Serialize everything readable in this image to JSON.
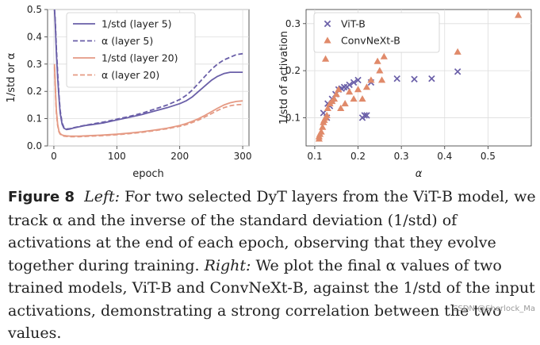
{
  "chart_data": [
    {
      "type": "line",
      "xlabel": "epoch",
      "ylabel": "1/std or α",
      "xlim": [
        -10,
        310
      ],
      "ylim": [
        0,
        0.5
      ],
      "xticks": [
        0,
        100,
        200,
        300
      ],
      "yticks": [
        0.0,
        0.1,
        0.2,
        0.3,
        0.4,
        0.5
      ],
      "xtick_labels": [
        "0",
        "100",
        "200",
        "300"
      ],
      "ytick_labels": [
        "0.0",
        "0.1",
        "0.2",
        "0.3",
        "0.4",
        "0.5"
      ],
      "grid": true,
      "legend_position": "top-right",
      "series": [
        {
          "name": "1/std (layer 5)",
          "color": "#6a5fa8",
          "dash": "solid",
          "x": [
            1,
            2,
            3,
            4,
            6,
            8,
            10,
            13,
            16,
            20,
            25,
            30,
            40,
            50,
            60,
            80,
            100,
            120,
            140,
            160,
            180,
            200,
            210,
            220,
            230,
            240,
            250,
            260,
            270,
            280,
            290,
            300
          ],
          "y": [
            0.5,
            0.46,
            0.4,
            0.34,
            0.25,
            0.18,
            0.12,
            0.08,
            0.065,
            0.06,
            0.062,
            0.065,
            0.07,
            0.075,
            0.078,
            0.085,
            0.095,
            0.105,
            0.115,
            0.128,
            0.14,
            0.155,
            0.165,
            0.18,
            0.2,
            0.22,
            0.24,
            0.255,
            0.265,
            0.27,
            0.27,
            0.27
          ]
        },
        {
          "name": "α (layer 5)",
          "color": "#6a5fa8",
          "dash": "dashed",
          "x": [
            1,
            2,
            3,
            4,
            6,
            8,
            10,
            13,
            16,
            20,
            25,
            30,
            40,
            50,
            60,
            80,
            100,
            120,
            140,
            160,
            180,
            200,
            210,
            220,
            230,
            240,
            250,
            260,
            270,
            280,
            290,
            300
          ],
          "y": [
            0.5,
            0.47,
            0.42,
            0.36,
            0.27,
            0.19,
            0.13,
            0.085,
            0.068,
            0.062,
            0.063,
            0.066,
            0.071,
            0.076,
            0.08,
            0.088,
            0.098,
            0.108,
            0.12,
            0.135,
            0.15,
            0.17,
            0.185,
            0.205,
            0.23,
            0.255,
            0.28,
            0.3,
            0.315,
            0.325,
            0.335,
            0.338
          ]
        },
        {
          "name": "1/std (layer 20)",
          "color": "#e59a84",
          "dash": "solid",
          "x": [
            1,
            2,
            3,
            4,
            6,
            8,
            10,
            13,
            16,
            20,
            25,
            30,
            40,
            50,
            60,
            80,
            100,
            120,
            140,
            160,
            180,
            200,
            210,
            220,
            230,
            240,
            250,
            260,
            270,
            280,
            290,
            300
          ],
          "y": [
            0.3,
            0.24,
            0.18,
            0.13,
            0.08,
            0.055,
            0.045,
            0.04,
            0.038,
            0.037,
            0.036,
            0.036,
            0.036,
            0.037,
            0.038,
            0.04,
            0.043,
            0.047,
            0.052,
            0.058,
            0.065,
            0.075,
            0.082,
            0.09,
            0.1,
            0.112,
            0.125,
            0.138,
            0.15,
            0.158,
            0.163,
            0.165
          ]
        },
        {
          "name": "α (layer 20)",
          "color": "#e59a84",
          "dash": "dashed",
          "x": [
            1,
            2,
            3,
            4,
            6,
            8,
            10,
            13,
            16,
            20,
            25,
            30,
            40,
            50,
            60,
            80,
            100,
            120,
            140,
            160,
            180,
            200,
            210,
            220,
            230,
            240,
            250,
            260,
            270,
            280,
            290,
            300
          ],
          "y": [
            0.29,
            0.23,
            0.17,
            0.12,
            0.075,
            0.052,
            0.043,
            0.038,
            0.036,
            0.035,
            0.034,
            0.034,
            0.034,
            0.035,
            0.036,
            0.038,
            0.041,
            0.045,
            0.05,
            0.056,
            0.063,
            0.072,
            0.078,
            0.086,
            0.095,
            0.106,
            0.118,
            0.13,
            0.14,
            0.147,
            0.151,
            0.152
          ]
        }
      ]
    },
    {
      "type": "scatter",
      "xlabel": "α",
      "ylabel": "1/std of activation",
      "xlim": [
        0.08,
        0.6
      ],
      "ylim": [
        0.04,
        0.33
      ],
      "xticks": [
        0.1,
        0.2,
        0.3,
        0.4,
        0.5
      ],
      "yticks": [
        0.1,
        0.2,
        0.3
      ],
      "xtick_labels": [
        "0.1",
        "0.2",
        "0.3",
        "0.4",
        "0.5"
      ],
      "ytick_labels": [
        "0.1",
        "0.2",
        "0.3"
      ],
      "grid": true,
      "legend_position": "top-left",
      "series": [
        {
          "name": "ViT-B",
          "color": "#6a5fa8",
          "marker": "x",
          "x": [
            0.12,
            0.128,
            0.135,
            0.14,
            0.148,
            0.155,
            0.162,
            0.168,
            0.18,
            0.19,
            0.2,
            0.21,
            0.22,
            0.23,
            0.29,
            0.33,
            0.37,
            0.43,
            0.13,
            0.175,
            0.215
          ],
          "y": [
            0.11,
            0.1,
            0.125,
            0.14,
            0.15,
            0.16,
            0.162,
            0.165,
            0.17,
            0.175,
            0.18,
            0.1,
            0.105,
            0.175,
            0.183,
            0.182,
            0.183,
            0.198,
            0.13,
            0.165,
            0.105
          ]
        },
        {
          "name": "ConvNeXt-B",
          "color": "#e08a6a",
          "marker": "triangle",
          "x": [
            0.11,
            0.11,
            0.112,
            0.115,
            0.118,
            0.12,
            0.122,
            0.125,
            0.128,
            0.13,
            0.135,
            0.14,
            0.145,
            0.15,
            0.155,
            0.16,
            0.17,
            0.18,
            0.19,
            0.2,
            0.21,
            0.22,
            0.23,
            0.245,
            0.25,
            0.255,
            0.26,
            0.125,
            0.43,
            0.57
          ],
          "y": [
            0.055,
            0.06,
            0.065,
            0.07,
            0.08,
            0.09,
            0.095,
            0.1,
            0.105,
            0.12,
            0.13,
            0.135,
            0.14,
            0.15,
            0.16,
            0.12,
            0.13,
            0.155,
            0.14,
            0.16,
            0.14,
            0.165,
            0.18,
            0.22,
            0.2,
            0.18,
            0.23,
            0.225,
            0.24,
            0.318
          ]
        }
      ]
    }
  ],
  "caption": {
    "label": "Figure 8",
    "left_label": "Left:",
    "text_1": " For two selected DyT layers from the ViT-B model, we track α and the inverse of the standard deviation (1/std) of activations at the end of each epoch, observing that they evolve together during training. ",
    "right_label": "Right:",
    "text_2": " We plot the final α values of two trained models, ViT-B and ConvNeXt-B, against the 1/std of the input activations, demonstrating a strong correlation between the two values."
  },
  "watermark": "CSDN @Sherlock_Ma"
}
